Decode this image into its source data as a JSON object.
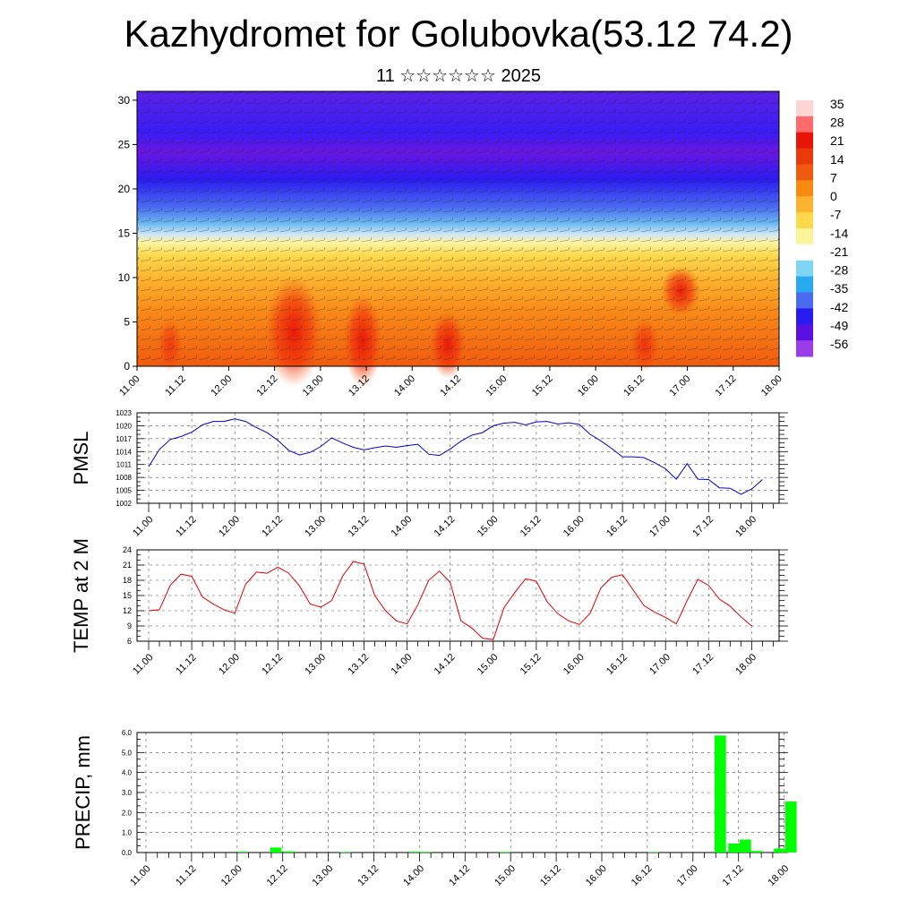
{
  "header": {
    "title": "Kazhydromet for Golubovka(53.12 74.2)",
    "subtitle": "11 ☆☆☆☆☆☆ 2025"
  },
  "time_ticks": [
    "11.00",
    "11.12",
    "12.00",
    "12.12",
    "13.00",
    "13.12",
    "14.00",
    "14.12",
    "15.00",
    "15.12",
    "16.00",
    "16.12",
    "17.00",
    "17.12",
    "18.00"
  ],
  "chart_data": [
    {
      "id": "cross-section",
      "type": "heatmap",
      "y_ticks": [
        "0",
        "5",
        "10",
        "15",
        "20",
        "25",
        "30"
      ],
      "ylim": [
        0,
        31
      ],
      "colorbar": {
        "labels": [
          "35",
          "28",
          "21",
          "14",
          "7",
          "0",
          "-7",
          "-14",
          "-21",
          "-28",
          "-35",
          "-42",
          "-49",
          "-56"
        ],
        "colors": [
          "#ffd4d4",
          "#ff6a6a",
          "#e8140a",
          "#e83a0a",
          "#f05a10",
          "#f88a10",
          "#fcb430",
          "#fcd84a",
          "#fcf49a",
          "#ffffff",
          "#7fd6f4",
          "#2aaaee",
          "#4a6af0",
          "#2a1cf0",
          "#5a10e0",
          "#9a3ce8"
        ]
      }
    },
    {
      "id": "pmsl",
      "type": "line",
      "ylabel": "PMSL",
      "ylim": [
        1002,
        1023
      ],
      "y_ticks": [
        "1002",
        "1005",
        "1008",
        "1011",
        "1014",
        "1017",
        "1020",
        "1023"
      ],
      "color": "#0000cc",
      "series": [
        {
          "values": [
            1010.5,
            1014.5,
            1016.8,
            1017.5,
            1018.5,
            1020.2,
            1021,
            1021,
            1021.6,
            1021,
            1019.6,
            1018.4,
            1016.6,
            1014.3,
            1013.2,
            1013.8,
            1015.2,
            1017.2,
            1016,
            1015,
            1014.4,
            1014.9,
            1015.3,
            1015,
            1015.4,
            1015.7,
            1013.4,
            1013.1,
            1014.6,
            1016.4,
            1017.8,
            1018.4,
            1020,
            1020.6,
            1020.8,
            1020.2,
            1020.9,
            1021,
            1020.4,
            1020.7,
            1020.3,
            1018,
            1016.5,
            1014.7,
            1012.8,
            1012.8,
            1012.6,
            1011.4,
            1010,
            1007.6,
            1011.2,
            1007.6,
            1007.5,
            1005.6,
            1005.5,
            1004.1,
            1005.3,
            1007.5
          ]
        }
      ]
    },
    {
      "id": "temp",
      "type": "line",
      "ylabel": "TEMP at 2 M",
      "ylim": [
        6,
        24
      ],
      "y_ticks": [
        "6",
        "9",
        "12",
        "15",
        "18",
        "21",
        "24"
      ],
      "color": "#e00000",
      "series": [
        {
          "values": [
            12,
            12.2,
            17,
            19.2,
            18.8,
            14.7,
            13.3,
            12.2,
            11.5,
            17.2,
            19.6,
            19.4,
            20.6,
            19.4,
            16.9,
            13.3,
            12.7,
            14,
            18.8,
            21.7,
            21.2,
            15,
            12,
            10,
            9.4,
            13.2,
            18,
            19.8,
            17.6,
            10,
            8.6,
            6.6,
            6.3,
            12.6,
            15.6,
            18.3,
            17.8,
            13.8,
            11.4,
            10,
            9.3,
            11.5,
            16.5,
            18.6,
            19.1,
            16.1,
            13,
            11.7,
            10.7,
            9.4,
            14,
            18.2,
            17,
            14.3,
            12.9,
            10.8,
            9
          ]
        }
      ]
    },
    {
      "id": "precip",
      "type": "bar",
      "ylabel": "PRECIP, mm",
      "ylim": [
        0,
        6
      ],
      "y_ticks": [
        "0.0",
        "1.0",
        "2.0",
        "3.0",
        "4.0",
        "5.0",
        "6.0"
      ],
      "color": "#00ff00",
      "bars": [
        {
          "t": 8.5,
          "v": 0.04
        },
        {
          "t": 11.4,
          "v": 0.25
        },
        {
          "t": 12.6,
          "v": 0.06
        },
        {
          "t": 17.5,
          "v": 0.03
        },
        {
          "t": 23.6,
          "v": 0.04
        },
        {
          "t": 24.6,
          "v": 0.03
        },
        {
          "t": 31.5,
          "v": 0.03
        },
        {
          "t": 44.5,
          "v": 0.02
        },
        {
          "t": 50.4,
          "v": 5.85
        },
        {
          "t": 51.6,
          "v": 0.45
        },
        {
          "t": 52.6,
          "v": 0.65
        },
        {
          "t": 53.6,
          "v": 0.08
        },
        {
          "t": 55.6,
          "v": 0.2
        },
        {
          "t": 56.6,
          "v": 2.55
        }
      ]
    }
  ]
}
